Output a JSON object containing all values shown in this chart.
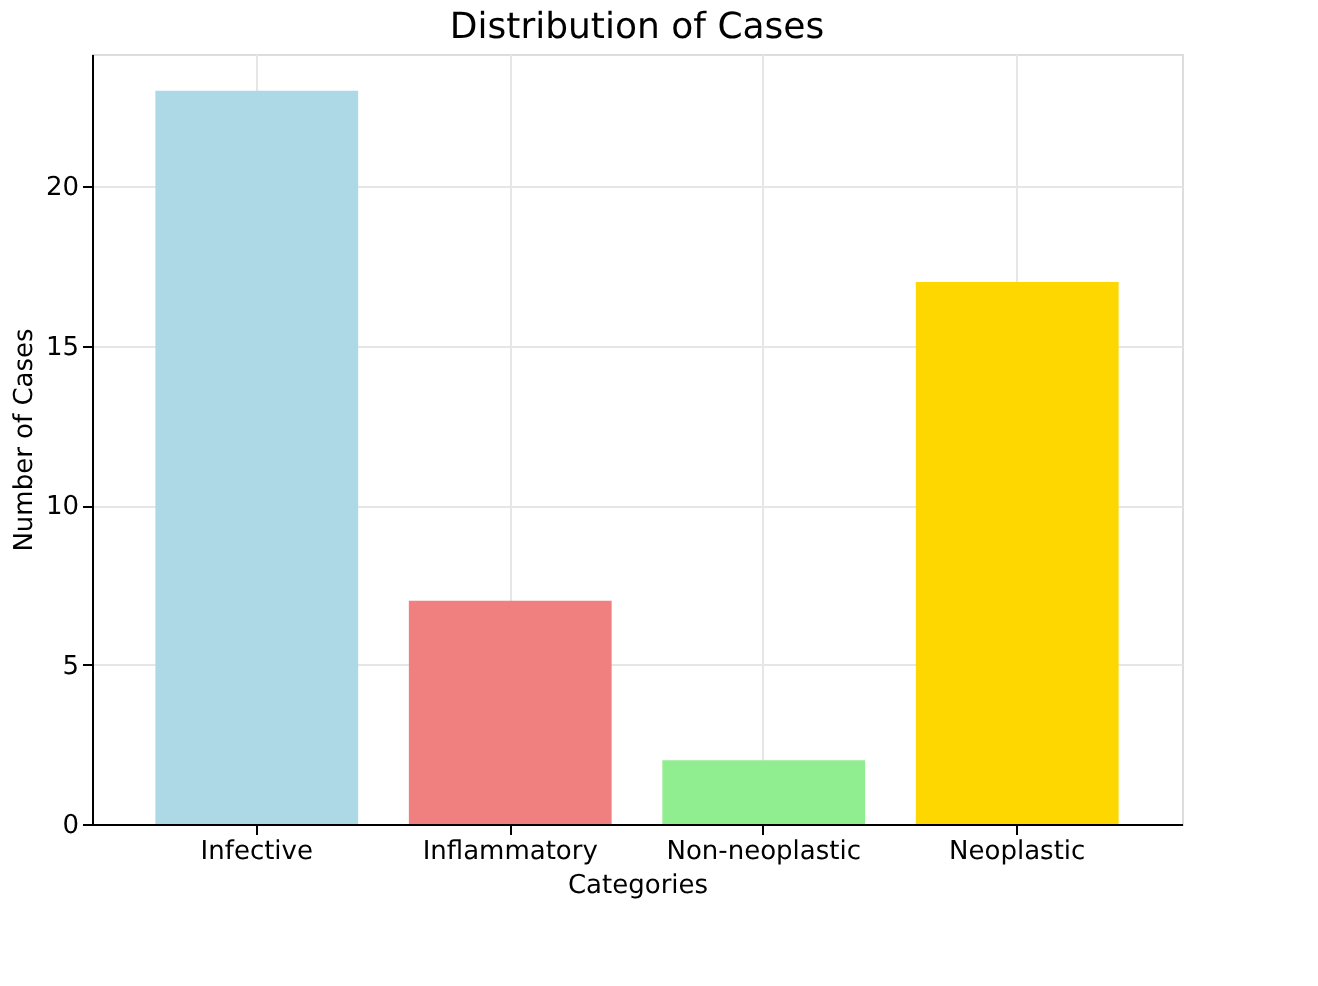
{
  "chart_data": {
    "type": "bar",
    "title": "Distribution of Cases",
    "xlabel": "Categories",
    "ylabel": "Number of Cases",
    "categories": [
      "Infective",
      "Inflammatory",
      "Non-neoplastic",
      "Neoplastic"
    ],
    "values": [
      23,
      7,
      2,
      17
    ],
    "colors": [
      "#add8e6",
      "#f08080",
      "#90ee90",
      "#ffd700"
    ],
    "ylim": [
      0,
      24.15
    ],
    "yticks": [
      0,
      5,
      10,
      15,
      20
    ],
    "grid": true
  }
}
